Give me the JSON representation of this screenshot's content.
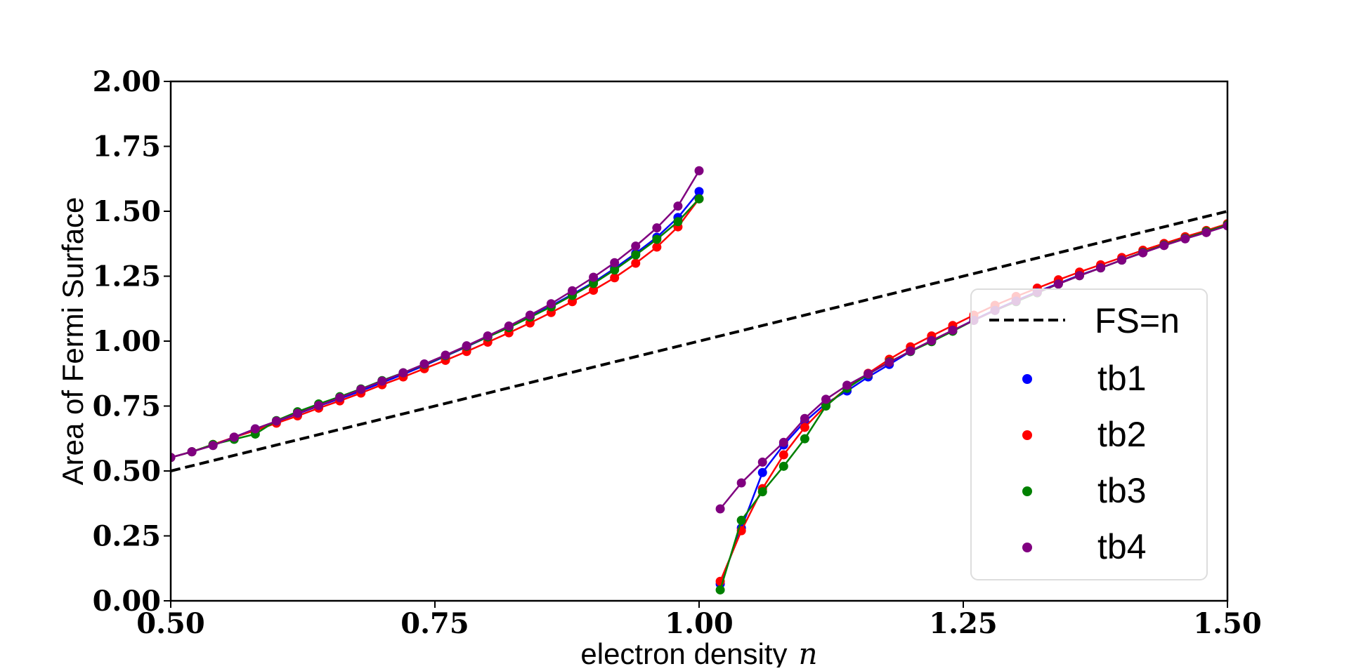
{
  "chart_data": {
    "type": "line",
    "title": "",
    "xlabel": "electron density",
    "xlabel_symbol": "n",
    "ylabel": "Area of Fermi Surface",
    "xlim": [
      0.5,
      1.5
    ],
    "ylim": [
      0.0,
      2.0
    ],
    "xticks": [
      "0.50",
      "0.75",
      "1.00",
      "1.25",
      "1.50"
    ],
    "yticks": [
      "0.00",
      "0.25",
      "0.50",
      "0.75",
      "1.00",
      "1.25",
      "1.50",
      "1.75",
      "2.00"
    ],
    "grid": false,
    "legend_position": "center-right",
    "reference_line": {
      "name": "FS=n",
      "x": [
        0.5,
        1.5
      ],
      "y": [
        0.5,
        1.5
      ],
      "color": "#000000",
      "style": "dashed"
    },
    "series": [
      {
        "name": "tb1",
        "color": "#0000ff",
        "segments": [
          {
            "x": [
              0.5,
              0.52,
              0.54,
              0.56,
              0.58,
              0.6,
              0.62,
              0.64,
              0.66,
              0.68,
              0.7,
              0.72,
              0.74,
              0.76,
              0.78,
              0.8,
              0.82,
              0.84,
              0.86,
              0.88,
              0.9,
              0.92,
              0.94,
              0.96,
              0.98,
              1.0
            ],
            "y": [
              0.552,
              0.574,
              0.6,
              0.63,
              0.662,
              0.69,
              0.72,
              0.75,
              0.778,
              0.808,
              0.84,
              0.872,
              0.906,
              0.942,
              0.978,
              1.016,
              1.054,
              1.094,
              1.136,
              1.18,
              1.226,
              1.28,
              1.338,
              1.4,
              1.476,
              1.576
            ]
          },
          {
            "x": [
              1.02,
              1.04,
              1.06,
              1.08,
              1.1,
              1.12,
              1.14,
              1.16,
              1.18,
              1.2,
              1.22,
              1.24,
              1.26,
              1.28,
              1.3,
              1.32,
              1.34,
              1.36,
              1.38,
              1.4,
              1.42,
              1.44,
              1.46,
              1.48,
              1.5
            ],
            "y": [
              0.065,
              0.28,
              0.494,
              0.6,
              0.69,
              0.76,
              0.808,
              0.862,
              0.91,
              0.96,
              1.002,
              1.04,
              1.082,
              1.12,
              1.156,
              1.19,
              1.222,
              1.254,
              1.282,
              1.312,
              1.342,
              1.37,
              1.396,
              1.42,
              1.446
            ]
          }
        ]
      },
      {
        "name": "tb2",
        "color": "#ff0000",
        "segments": [
          {
            "x": [
              0.5,
              0.52,
              0.54,
              0.56,
              0.58,
              0.6,
              0.62,
              0.64,
              0.66,
              0.68,
              0.7,
              0.72,
              0.74,
              0.76,
              0.78,
              0.8,
              0.82,
              0.84,
              0.86,
              0.88,
              0.9,
              0.92,
              0.94,
              0.96,
              0.98,
              1.0
            ],
            "y": [
              0.552,
              0.574,
              0.602,
              0.63,
              0.656,
              0.684,
              0.712,
              0.742,
              0.77,
              0.8,
              0.832,
              0.862,
              0.894,
              0.926,
              0.96,
              0.996,
              1.032,
              1.07,
              1.11,
              1.152,
              1.196,
              1.244,
              1.3,
              1.362,
              1.44,
              1.548
            ]
          },
          {
            "x": [
              1.02,
              1.04,
              1.06,
              1.08,
              1.1,
              1.12,
              1.14,
              1.16,
              1.18,
              1.2,
              1.22,
              1.24,
              1.26,
              1.28,
              1.3,
              1.32,
              1.34,
              1.36,
              1.38,
              1.4,
              1.42,
              1.44,
              1.46,
              1.48,
              1.5
            ],
            "y": [
              0.075,
              0.27,
              0.432,
              0.562,
              0.668,
              0.752,
              0.82,
              0.876,
              0.93,
              0.978,
              1.02,
              1.06,
              1.1,
              1.138,
              1.172,
              1.204,
              1.236,
              1.266,
              1.294,
              1.322,
              1.35,
              1.376,
              1.402,
              1.426,
              1.452
            ]
          }
        ]
      },
      {
        "name": "tb3",
        "color": "#008000",
        "segments": [
          {
            "x": [
              0.5,
              0.52,
              0.54,
              0.56,
              0.58,
              0.6,
              0.62,
              0.64,
              0.66,
              0.68,
              0.7,
              0.72,
              0.74,
              0.76,
              0.78,
              0.8,
              0.82,
              0.84,
              0.86,
              0.88,
              0.9,
              0.92,
              0.94,
              0.96,
              0.98,
              1.0
            ],
            "y": [
              0.552,
              0.574,
              0.602,
              0.622,
              0.642,
              0.694,
              0.728,
              0.758,
              0.786,
              0.816,
              0.848,
              0.878,
              0.91,
              0.944,
              0.98,
              1.016,
              1.052,
              1.092,
              1.132,
              1.176,
              1.222,
              1.274,
              1.332,
              1.392,
              1.46,
              1.548
            ]
          },
          {
            "x": [
              1.02,
              1.04,
              1.06,
              1.08,
              1.1,
              1.12,
              1.14,
              1.16,
              1.18,
              1.2,
              1.22,
              1.24,
              1.26,
              1.28,
              1.3,
              1.32,
              1.34,
              1.36,
              1.38,
              1.4,
              1.42,
              1.44,
              1.46,
              1.48,
              1.5
            ],
            "y": [
              0.042,
              0.31,
              0.42,
              0.518,
              0.624,
              0.75,
              0.818,
              0.872,
              0.92,
              0.96,
              0.998,
              1.038,
              1.08,
              1.118,
              1.152,
              1.186,
              1.22,
              1.252,
              1.282,
              1.312,
              1.342,
              1.37,
              1.396,
              1.422,
              1.448
            ]
          }
        ]
      },
      {
        "name": "tb4",
        "color": "#800080",
        "segments": [
          {
            "x": [
              0.5,
              0.52,
              0.54,
              0.56,
              0.58,
              0.6,
              0.62,
              0.64,
              0.66,
              0.68,
              0.7,
              0.72,
              0.74,
              0.76,
              0.78,
              0.8,
              0.82,
              0.84,
              0.86,
              0.88,
              0.9,
              0.92,
              0.94,
              0.96,
              0.98,
              1.0
            ],
            "y": [
              0.552,
              0.574,
              0.598,
              0.63,
              0.662,
              0.692,
              0.722,
              0.752,
              0.782,
              0.814,
              0.846,
              0.878,
              0.912,
              0.946,
              0.982,
              1.02,
              1.058,
              1.1,
              1.144,
              1.194,
              1.246,
              1.302,
              1.366,
              1.436,
              1.52,
              1.656
            ]
          },
          {
            "x": [
              1.02,
              1.04,
              1.06,
              1.08,
              1.1,
              1.12,
              1.14,
              1.16,
              1.18,
              1.2,
              1.22,
              1.24,
              1.26,
              1.28,
              1.3,
              1.32,
              1.34,
              1.36,
              1.38,
              1.4,
              1.42,
              1.44,
              1.46,
              1.48,
              1.5
            ],
            "y": [
              0.354,
              0.454,
              0.534,
              0.61,
              0.702,
              0.776,
              0.83,
              0.874,
              0.918,
              0.962,
              1.002,
              1.042,
              1.08,
              1.118,
              1.154,
              1.188,
              1.22,
              1.252,
              1.282,
              1.312,
              1.34,
              1.368,
              1.394,
              1.418,
              1.444
            ]
          }
        ]
      }
    ]
  }
}
